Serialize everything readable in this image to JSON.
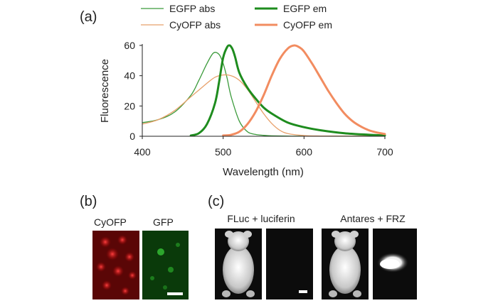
{
  "panels": {
    "a": "(a)",
    "b": "(b)",
    "c": "(c)"
  },
  "chart_data": {
    "type": "line",
    "title": "",
    "xlabel": "Wavelength (nm)",
    "ylabel": "Fluorescence",
    "xlim": [
      400,
      700
    ],
    "ylim": [
      0,
      60
    ],
    "x_ticks": [
      400,
      500,
      600,
      700
    ],
    "y_ticks": [
      0,
      20,
      40,
      60
    ],
    "grid": false,
    "legend": "top",
    "series": [
      {
        "name": "EGFP abs",
        "color": "#3a9a3a",
        "style": "thin",
        "x": [
          400,
          420,
          440,
          460,
          470,
          480,
          488,
          495,
          500,
          505,
          510,
          520,
          530,
          540,
          550,
          560,
          580,
          600,
          700
        ],
        "y": [
          9,
          11,
          16,
          27,
          37,
          48,
          55,
          54,
          48,
          38,
          26,
          10,
          3,
          1.2,
          0.6,
          0.3,
          0.1,
          0.1,
          0.1
        ]
      },
      {
        "name": "CyOFP abs",
        "color": "#e8a06a",
        "style": "thin",
        "x": [
          400,
          420,
          440,
          460,
          480,
          490,
          500,
          510,
          520,
          530,
          540,
          550,
          560,
          570,
          580,
          600,
          620,
          700
        ],
        "y": [
          8,
          11,
          17,
          26,
          35,
          39,
          40.5,
          40,
          37,
          31,
          23,
          15,
          8.5,
          4,
          1.8,
          0.5,
          0.2,
          0.1
        ]
      },
      {
        "name": "EGFP em",
        "color": "#1e8c1e",
        "style": "thick",
        "x": [
          460,
          470,
          480,
          490,
          495,
          500,
          505,
          508,
          510,
          512,
          515,
          520,
          530,
          540,
          550,
          560,
          580,
          600,
          620,
          650,
          680,
          700
        ],
        "y": [
          0.5,
          2,
          8,
          22,
          36,
          52,
          59,
          60,
          59,
          57,
          52,
          42,
          32,
          25,
          19,
          15,
          9,
          6,
          4,
          2,
          1,
          0.5
        ]
      },
      {
        "name": "CyOFP em",
        "color": "#f28c60",
        "style": "thick",
        "x": [
          500,
          510,
          520,
          530,
          540,
          550,
          560,
          570,
          580,
          588,
          595,
          600,
          610,
          620,
          630,
          640,
          650,
          660,
          670,
          680,
          690,
          700
        ],
        "y": [
          0.5,
          1,
          3,
          8,
          16,
          27,
          40,
          51,
          58,
          60,
          58.5,
          56,
          48,
          39,
          30,
          22,
          15,
          10,
          6.5,
          4,
          2.5,
          1.5
        ]
      }
    ]
  },
  "panel_b": {
    "labels": [
      "CyOFP",
      "GFP"
    ]
  },
  "panel_c": {
    "labels": [
      "FLuc + luciferin",
      "Antares + FRZ"
    ]
  }
}
